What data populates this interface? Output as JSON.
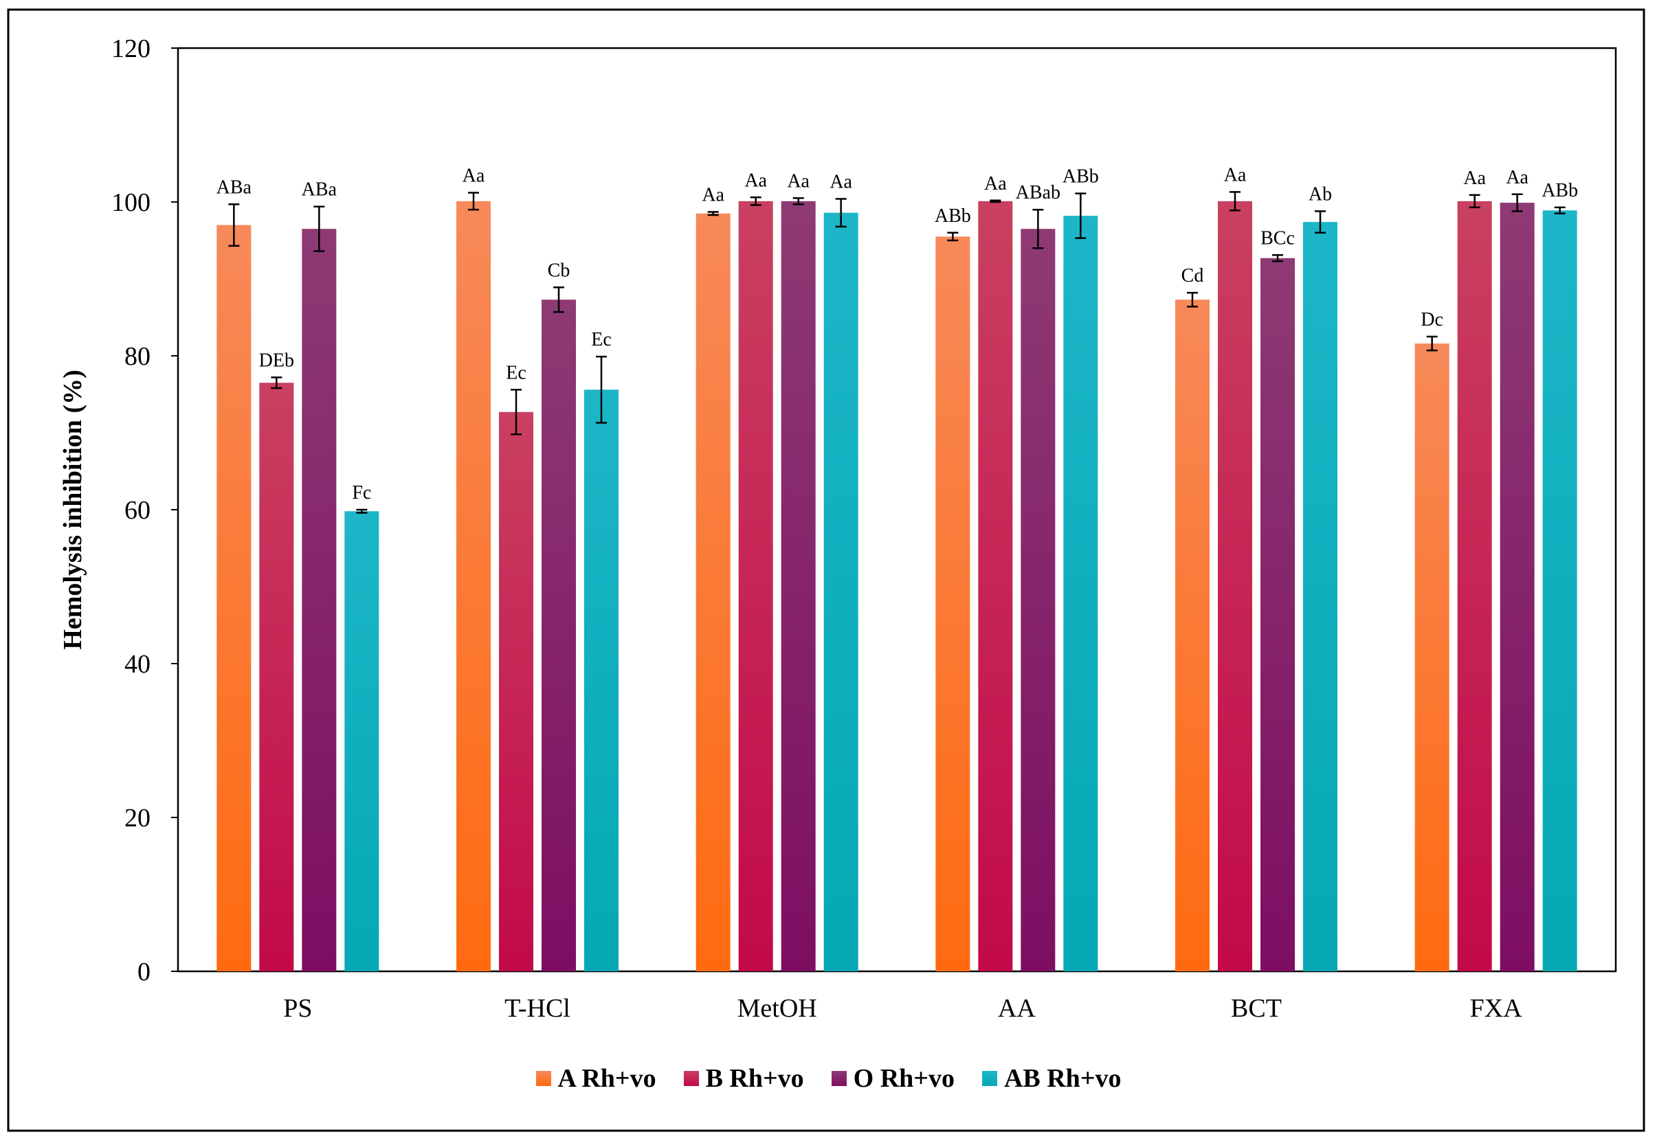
{
  "chart_data": {
    "type": "bar",
    "title": "",
    "xlabel": "",
    "ylabel": "Hemolysis inhibition (%)",
    "ylim": [
      0,
      120
    ],
    "yticks": [
      0,
      20,
      40,
      60,
      80,
      100,
      120
    ],
    "grid": false,
    "legend_position": "bottom-center",
    "categories": [
      "PS",
      "T-HCl",
      "MetOH",
      "AA",
      "BCT",
      "FXA"
    ],
    "series": [
      {
        "name": "A Rh+vo",
        "color_top": "#F7895A",
        "color_bottom": "#FF6A10",
        "values": [
          97.0,
          100.1,
          98.5,
          95.5,
          87.3,
          81.6
        ],
        "errors": [
          2.7,
          1.1,
          0.2,
          0.5,
          0.9,
          0.9
        ],
        "labels": [
          "ABa",
          "Aa",
          "Aa",
          "ABb",
          "Cd",
          "Dc"
        ]
      },
      {
        "name": "B Rh+vo",
        "color_top": "#C94060",
        "color_bottom": "#C2094A",
        "values": [
          76.5,
          72.7,
          100.1,
          100.1,
          100.1,
          100.1
        ],
        "errors": [
          0.7,
          2.9,
          0.5,
          0.1,
          1.2,
          0.8
        ],
        "labels": [
          "DEb",
          "Ec",
          "Aa",
          "Aa",
          "Aa",
          "Aa"
        ]
      },
      {
        "name": "O Rh+vo",
        "color_top": "#8E3A74",
        "color_bottom": "#7D0E62",
        "values": [
          96.5,
          87.3,
          100.1,
          96.5,
          92.7,
          99.9
        ],
        "errors": [
          2.9,
          1.6,
          0.4,
          2.5,
          0.4,
          1.1
        ],
        "labels": [
          "ABa",
          "Cb",
          "Aa",
          "ABab",
          "BCc",
          "Aa"
        ]
      },
      {
        "name": "AB Rh+vo",
        "color_top": "#1CB6C8",
        "color_bottom": "#05A8B4",
        "values": [
          59.8,
          75.6,
          98.6,
          98.2,
          97.4,
          98.9
        ],
        "errors": [
          0.2,
          4.3,
          1.8,
          2.9,
          1.4,
          0.4
        ],
        "labels": [
          "Fc",
          "Ec",
          "Aa",
          "ABb",
          "Ab",
          "ABb"
        ]
      }
    ]
  }
}
